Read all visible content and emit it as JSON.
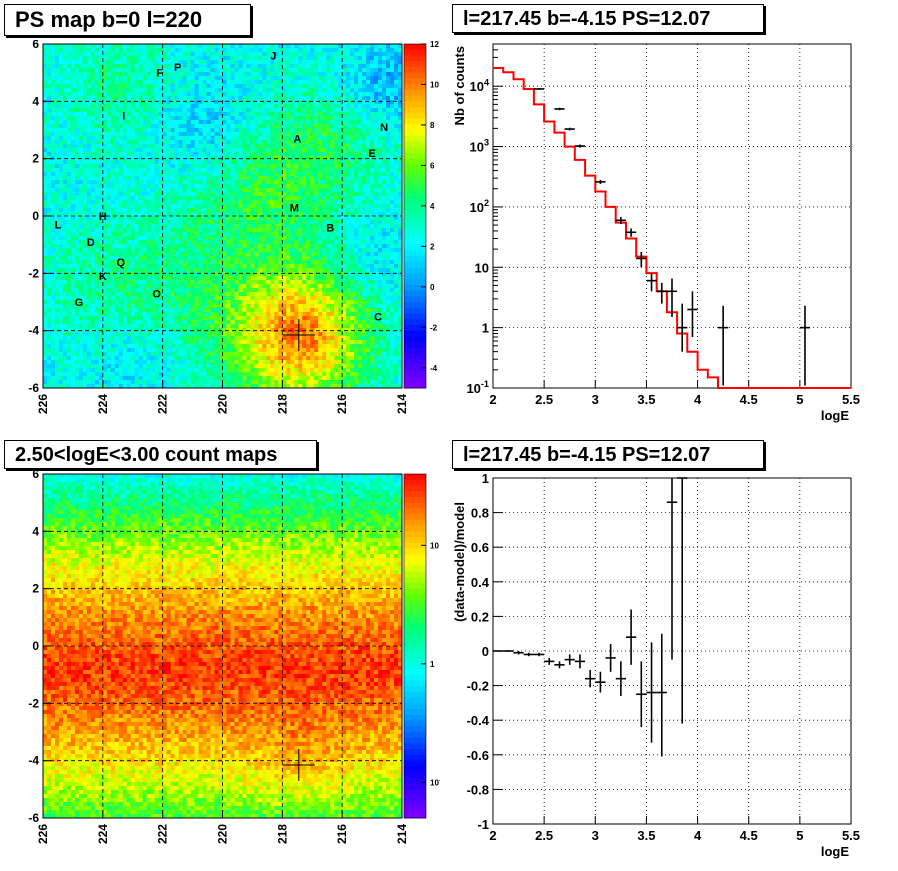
{
  "panels": {
    "top_left": {
      "title": "PS map b=0 l=220"
    },
    "top_right": {
      "title": "l=217.45 b=-4.15 PS=12.07"
    },
    "bottom_left": {
      "title": "2.50<logE<3.00 count maps"
    },
    "bottom_right": {
      "title": "l=217.45 b=-4.15 PS=12.07"
    }
  },
  "chart_data": [
    {
      "type": "heatmap",
      "title": "PS map b=0 l=220",
      "x_ticks": [
        "226",
        "224",
        "222",
        "220",
        "218",
        "216",
        "214"
      ],
      "y_ticks": [
        "6",
        "4",
        "2",
        "0",
        "-2",
        "-4",
        "-6"
      ],
      "xlim": [
        226,
        214
      ],
      "ylim": [
        -6,
        6
      ],
      "colorbar": {
        "ticks": [
          "12",
          "10",
          "8",
          "6",
          "4",
          "2",
          "0",
          "-2",
          "-4"
        ],
        "range": [
          -5,
          12
        ]
      },
      "source_marker": {
        "l": 217.45,
        "b": -4.15
      },
      "labels": [
        {
          "text": "J",
          "l": 218.3,
          "b": 5.6
        },
        {
          "text": "F",
          "l": 222.1,
          "b": 5.0
        },
        {
          "text": "P",
          "l": 221.5,
          "b": 5.2
        },
        {
          "text": "I",
          "l": 223.3,
          "b": 3.5
        },
        {
          "text": "A",
          "l": 217.5,
          "b": 2.7
        },
        {
          "text": "N",
          "l": 214.6,
          "b": 3.1
        },
        {
          "text": "E",
          "l": 215.0,
          "b": 2.2
        },
        {
          "text": "M",
          "l": 217.6,
          "b": 0.3
        },
        {
          "text": "B",
          "l": 216.4,
          "b": -0.4
        },
        {
          "text": "L",
          "l": 225.5,
          "b": -0.3
        },
        {
          "text": "H",
          "l": 224.0,
          "b": 0.0
        },
        {
          "text": "D",
          "l": 224.4,
          "b": -0.9
        },
        {
          "text": "Q",
          "l": 223.4,
          "b": -1.6
        },
        {
          "text": "K",
          "l": 224.0,
          "b": -2.1
        },
        {
          "text": "O",
          "l": 222.2,
          "b": -2.7
        },
        {
          "text": "G",
          "l": 224.8,
          "b": -3.0
        },
        {
          "text": "C",
          "l": 214.8,
          "b": -3.5
        }
      ],
      "grid": true
    },
    {
      "type": "line",
      "title": "l=217.45 b=-4.15 PS=12.07",
      "xlabel": "logE",
      "ylabel": "Nb of counts",
      "xlim": [
        2,
        5.5
      ],
      "ylim": [
        0.1,
        50000
      ],
      "y_scale": "log",
      "x_ticks": [
        "2",
        "2.5",
        "3",
        "3.5",
        "4",
        "4.5",
        "5",
        "5.5"
      ],
      "y_ticks": [
        "10^4",
        "10^3",
        "10^2",
        "10",
        "1",
        "10^-1"
      ],
      "grid": true,
      "series": [
        {
          "color": "#ff0000",
          "steps_x": [
            2.0,
            2.1,
            2.2,
            2.3,
            2.4,
            2.5,
            2.6,
            2.7,
            2.8,
            2.9,
            3.0,
            3.1,
            3.2,
            3.3,
            3.4,
            3.5,
            3.6,
            3.7,
            3.8,
            3.9,
            4.0,
            4.1,
            4.2,
            4.3,
            4.4,
            4.5,
            5.5
          ],
          "values": [
            20000,
            17000,
            13000,
            9000,
            5000,
            2600,
            1700,
            1000,
            600,
            330,
            180,
            100,
            55,
            30,
            15,
            8,
            4,
            1.8,
            0.8,
            0.4,
            0.2,
            0.15,
            0.1,
            0.1,
            0.1,
            0.1
          ]
        },
        {
          "color": "#000000",
          "points": [
            {
              "x": 2.45,
              "y": 9000,
              "lo": 8700,
              "hi": 9300
            },
            {
              "x": 2.65,
              "y": 4200,
              "lo": 4000,
              "hi": 4400
            },
            {
              "x": 2.75,
              "y": 1950,
              "lo": 1850,
              "hi": 2050
            },
            {
              "x": 2.85,
              "y": 1020,
              "lo": 960,
              "hi": 1080
            },
            {
              "x": 3.05,
              "y": 260,
              "lo": 240,
              "hi": 280
            },
            {
              "x": 3.25,
              "y": 60,
              "lo": 52,
              "hi": 68
            },
            {
              "x": 3.35,
              "y": 38,
              "lo": 32,
              "hi": 44
            },
            {
              "x": 3.45,
              "y": 14,
              "lo": 10,
              "hi": 18
            },
            {
              "x": 3.55,
              "y": 6,
              "lo": 4,
              "hi": 8
            },
            {
              "x": 3.65,
              "y": 4,
              "lo": 2.5,
              "hi": 5.5
            },
            {
              "x": 3.75,
              "y": 4,
              "lo": 1.5,
              "hi": 6.5
            },
            {
              "x": 3.85,
              "y": 1,
              "lo": 0.4,
              "hi": 2.5
            },
            {
              "x": 3.95,
              "y": 2,
              "lo": 0.7,
              "hi": 4
            },
            {
              "x": 4.25,
              "y": 1,
              "lo": 0.11,
              "hi": 2.3
            },
            {
              "x": 5.05,
              "y": 1,
              "lo": 0.11,
              "hi": 2.3
            }
          ]
        }
      ]
    },
    {
      "type": "heatmap",
      "title": "2.50<logE<3.00 count maps",
      "x_ticks": [
        "226",
        "224",
        "222",
        "220",
        "218",
        "216",
        "214"
      ],
      "y_ticks": [
        "6",
        "4",
        "2",
        "0",
        "-2",
        "-4",
        "-6"
      ],
      "xlim": [
        226,
        214
      ],
      "ylim": [
        -6,
        6
      ],
      "colorbar": {
        "ticks": [
          "10",
          "1",
          "10^-1"
        ],
        "scale": "log",
        "range": [
          0.05,
          40
        ]
      },
      "source_marker": {
        "l": 217.45,
        "b": -4.15
      },
      "grid": true
    },
    {
      "type": "scatter",
      "title": "l=217.45 b=-4.15 PS=12.07",
      "xlabel": "logE",
      "ylabel": "(data-model)/model",
      "xlim": [
        2,
        5.5
      ],
      "ylim": [
        -1,
        1
      ],
      "x_ticks": [
        "2",
        "2.5",
        "3",
        "3.5",
        "4",
        "4.5",
        "5",
        "5.5"
      ],
      "y_ticks": [
        "1",
        "0.8",
        "0.6",
        "0.4",
        "0.2",
        "0",
        "-0.2",
        "-0.4",
        "-0.6",
        "-0.8",
        "-1"
      ],
      "grid": true,
      "points": [
        {
          "x": 2.05,
          "y": 0.0,
          "lo": 0.0,
          "hi": 0.0
        },
        {
          "x": 2.15,
          "y": 0.0,
          "lo": -0.005,
          "hi": 0.005
        },
        {
          "x": 2.25,
          "y": -0.01,
          "lo": -0.02,
          "hi": 0.0
        },
        {
          "x": 2.35,
          "y": -0.02,
          "lo": -0.03,
          "hi": -0.01
        },
        {
          "x": 2.45,
          "y": -0.02,
          "lo": -0.03,
          "hi": -0.01
        },
        {
          "x": 2.55,
          "y": -0.06,
          "lo": -0.08,
          "hi": -0.04
        },
        {
          "x": 2.65,
          "y": -0.08,
          "lo": -0.1,
          "hi": -0.06
        },
        {
          "x": 2.75,
          "y": -0.05,
          "lo": -0.08,
          "hi": -0.02
        },
        {
          "x": 2.85,
          "y": -0.06,
          "lo": -0.1,
          "hi": -0.02
        },
        {
          "x": 2.95,
          "y": -0.16,
          "lo": -0.21,
          "hi": -0.11
        },
        {
          "x": 3.05,
          "y": -0.18,
          "lo": -0.24,
          "hi": -0.12
        },
        {
          "x": 3.15,
          "y": -0.04,
          "lo": -0.12,
          "hi": 0.04
        },
        {
          "x": 3.25,
          "y": -0.16,
          "lo": -0.26,
          "hi": -0.06
        },
        {
          "x": 3.35,
          "y": 0.08,
          "lo": -0.08,
          "hi": 0.24
        },
        {
          "x": 3.45,
          "y": -0.25,
          "lo": -0.44,
          "hi": -0.06
        },
        {
          "x": 3.55,
          "y": -0.24,
          "lo": -0.53,
          "hi": 0.05
        },
        {
          "x": 3.65,
          "y": -0.24,
          "lo": -0.61,
          "hi": 0.1
        },
        {
          "x": 3.75,
          "y": 0.86,
          "lo": -0.05,
          "hi": 1.0
        },
        {
          "x": 3.85,
          "y": 1.0,
          "lo": -0.42,
          "hi": 1.0
        }
      ]
    }
  ]
}
